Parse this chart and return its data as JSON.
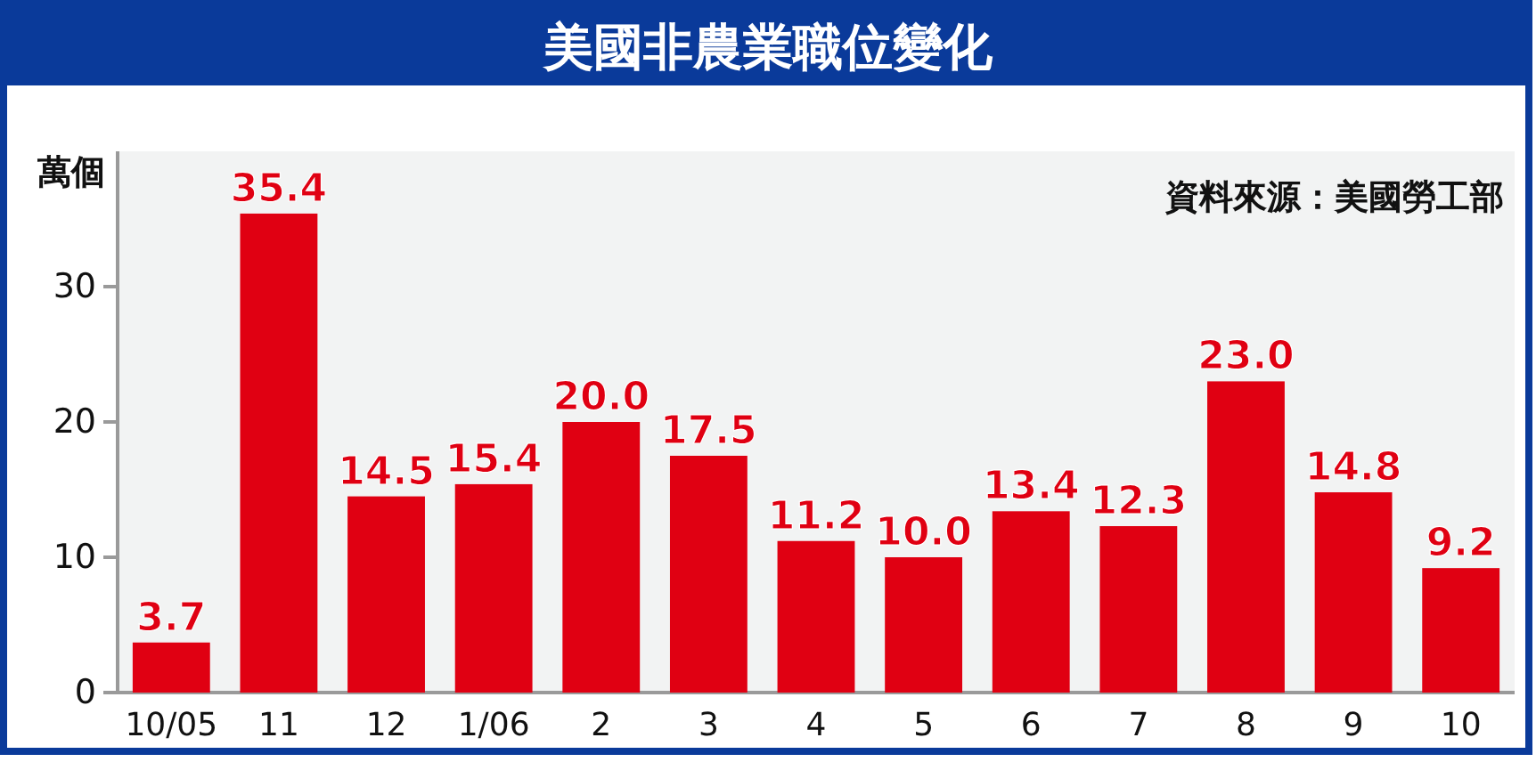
{
  "chart_data": {
    "type": "bar",
    "title": "美國非農業職位變化",
    "ylabel": "萬個",
    "annotations": [
      "資料來源：美國勞工部"
    ],
    "categories": [
      "10/05",
      "11",
      "12",
      "1/06",
      "2",
      "3",
      "4",
      "5",
      "6",
      "7",
      "8",
      "9",
      "10"
    ],
    "values": [
      3.7,
      35.4,
      14.5,
      15.4,
      20.0,
      17.5,
      11.2,
      10.0,
      13.4,
      12.3,
      23.0,
      14.8,
      9.2
    ],
    "value_labels": [
      "3.7",
      "35.4",
      "14.5",
      "15.4",
      "20.0",
      "17.5",
      "11.2",
      "10.0",
      "13.4",
      "12.3",
      "23.0",
      "14.8",
      "9.2"
    ],
    "color": "#e00012",
    "ylim": [
      0,
      40
    ],
    "yticks": [
      0,
      10,
      20,
      30
    ]
  }
}
